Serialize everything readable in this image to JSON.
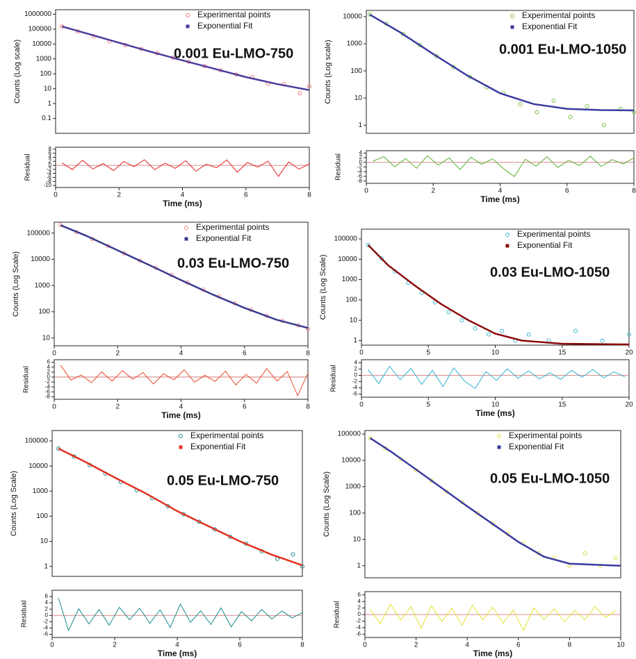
{
  "chart_data": [
    {
      "type": "scatter",
      "annotation": "0.001 Eu-LMO-750",
      "ylabel": "Counts (Log scale)",
      "log_scale": true,
      "legend": "upper right",
      "xlim": [
        0,
        8
      ],
      "ylim": [
        0.01,
        2000000
      ],
      "yticks": [
        0.1,
        1,
        10,
        100,
        1000,
        10000,
        100000,
        1000000
      ],
      "series": [
        {
          "name": "Experimental points",
          "color": "#f07878",
          "marker": "circle",
          "x": [
            0.2,
            0.7,
            1.2,
            1.7,
            2.2,
            2.7,
            3.2,
            3.7,
            4.2,
            4.7,
            5.2,
            5.7,
            6.2,
            6.7,
            7.2,
            7.7,
            8
          ],
          "values": [
            150000,
            70000,
            33000,
            15000,
            8500,
            4500,
            2400,
            1200,
            640,
            330,
            170,
            90,
            60,
            22,
            20,
            5,
            14
          ]
        },
        {
          "name": "Exponential Fit",
          "color": "#4a3c9c",
          "marker": "line",
          "x": [
            0.2,
            1,
            2,
            3,
            4,
            5,
            6,
            7,
            8
          ],
          "values": [
            150000,
            50000,
            12000,
            3000,
            800,
            220,
            60,
            20,
            8
          ]
        }
      ]
    },
    {
      "type": "line",
      "ylabel": "Residual",
      "xlabel": "Time (ms)",
      "log_scale": false,
      "xlim": [
        0,
        8
      ],
      "xticks": [
        0,
        2,
        4,
        6,
        8
      ],
      "ylim": [
        -11,
        9
      ],
      "yticks": [
        -10,
        -8,
        -6,
        -4,
        -2,
        0,
        2,
        4,
        6,
        8
      ],
      "series": [
        {
          "color": "#e02020",
          "x": [
            0.2,
            0.525,
            0.85,
            1.175,
            1.5,
            1.825,
            2.15,
            2.475,
            2.8,
            3.125,
            3.45,
            3.775,
            4.1,
            4.425,
            4.75,
            5.075,
            5.4,
            5.725,
            6.05,
            6.375,
            6.7,
            7.025,
            7.35,
            7.675,
            8
          ],
          "values": [
            1.2,
            -2.1,
            2.5,
            -1.8,
            0.9,
            -2.6,
            1.9,
            -0.7,
            2.8,
            -2.2,
            1.1,
            -1.5,
            2.3,
            -2.9,
            0.6,
            -1.2,
            2.7,
            -3.4,
            1.4,
            -0.9,
            2.1,
            -5.5,
            1.7,
            -1.9,
            0.8
          ]
        }
      ]
    },
    {
      "type": "scatter",
      "annotation": "0.001 Eu-LMO-1050",
      "ylabel": "Counts (Log scale)",
      "log_scale": true,
      "legend": "upper right",
      "xlim": [
        0,
        8
      ],
      "ylim": [
        0.5,
        17000
      ],
      "yticks": [
        1,
        10,
        100,
        1000,
        10000
      ],
      "series": [
        {
          "name": "Experimental points",
          "color": "#78c040",
          "marker": "circle",
          "x": [
            0.1,
            0.6,
            1.1,
            1.6,
            2.1,
            2.6,
            3.1,
            3.6,
            4.1,
            4.6,
            5.1,
            5.6,
            6.1,
            6.6,
            7.1,
            7.6,
            8
          ],
          "values": [
            12000,
            5500,
            2300,
            900,
            350,
            140,
            60,
            25,
            15,
            6,
            3,
            8,
            2,
            5,
            1,
            4,
            3
          ]
        },
        {
          "name": "Exponential Fit",
          "color": "#3a3aa0",
          "marker": "line",
          "x": [
            0.1,
            1,
            2,
            3,
            4,
            5,
            6,
            7,
            8
          ],
          "values": [
            12000,
            2700,
            420,
            70,
            15,
            6,
            4,
            3.6,
            3.5
          ]
        }
      ]
    },
    {
      "type": "line",
      "ylabel": "Residual",
      "xlabel": "Time (ms)",
      "log_scale": false,
      "xlim": [
        0,
        8
      ],
      "xticks": [
        0,
        2,
        4,
        6,
        8
      ],
      "ylim": [
        -9,
        5
      ],
      "yticks": [
        -8,
        -6,
        -4,
        -2,
        0,
        2,
        4
      ],
      "series": [
        {
          "color": "#58b030",
          "x": [
            0.2,
            0.525,
            0.85,
            1.175,
            1.5,
            1.825,
            2.15,
            2.475,
            2.8,
            3.125,
            3.45,
            3.775,
            4.1,
            4.425,
            4.75,
            5.075,
            5.4,
            5.725,
            6.05,
            6.375,
            6.7,
            7.025,
            7.35,
            7.675,
            8
          ],
          "values": [
            0.5,
            2.4,
            -1.9,
            1.6,
            -2.5,
            2.8,
            -1.2,
            1.9,
            -3.1,
            2.2,
            -0.8,
            1.5,
            -2.7,
            -6.1,
            1.3,
            -1.6,
            2.4,
            -2.2,
            0.9,
            -1.4,
            2.6,
            -1.8,
            1.2,
            -0.7,
            1.9
          ]
        }
      ]
    },
    {
      "type": "scatter",
      "annotation": "0.03 Eu-LMO-750",
      "ylabel": "Counts (Log Scale)",
      "log_scale": true,
      "legend": "upper right",
      "xlim": [
        0,
        8
      ],
      "xticks": [
        0,
        2,
        4,
        6,
        8
      ],
      "ylim": [
        5,
        260000
      ],
      "yticks": [
        10,
        100,
        1000,
        10000,
        100000
      ],
      "series": [
        {
          "name": "Experimental points",
          "color": "#f08a80",
          "marker": "circle",
          "x": [
            0.2,
            0.7,
            1.2,
            1.7,
            2.2,
            2.7,
            3.2,
            3.7,
            4.2,
            4.7,
            5.2,
            5.7,
            6.2,
            6.7,
            7.2,
            7.7,
            8
          ],
          "values": [
            200000,
            110000,
            60000,
            32000,
            17000,
            9000,
            4800,
            2500,
            1300,
            700,
            380,
            210,
            120,
            70,
            45,
            30,
            22
          ]
        },
        {
          "name": "Exponential Fit",
          "color": "#3a3a90",
          "marker": "line",
          "x": [
            0.2,
            1,
            2,
            3,
            4,
            5,
            6,
            7,
            8
          ],
          "values": [
            200000,
            80000,
            22000,
            6000,
            1600,
            450,
            140,
            50,
            24
          ]
        }
      ]
    },
    {
      "type": "line",
      "ylabel": "Residual",
      "xlabel": "Time (ms)",
      "log_scale": false,
      "xlim": [
        0,
        8
      ],
      "xticks": [
        0,
        2,
        4,
        6,
        8
      ],
      "ylim": [
        -9,
        7
      ],
      "yticks": [
        -8,
        -6,
        -4,
        -2,
        0,
        2,
        4,
        6
      ],
      "series": [
        {
          "color": "#e84a30",
          "x": [
            0.2,
            0.525,
            0.85,
            1.175,
            1.5,
            1.825,
            2.15,
            2.475,
            2.8,
            3.125,
            3.45,
            3.775,
            4.1,
            4.425,
            4.75,
            5.075,
            5.4,
            5.725,
            6.05,
            6.375,
            6.7,
            7.025,
            7.35,
            7.675,
            8
          ],
          "values": [
            4.8,
            -1.2,
            0.8,
            -2.3,
            2.1,
            -1.7,
            2.6,
            -0.9,
            1.8,
            -2.8,
            1.3,
            -1.1,
            2.9,
            -2.1,
            0.7,
            -1.8,
            2.4,
            -3.2,
            1.1,
            -2.5,
            3.4,
            -1.6,
            2.2,
            -7.5,
            1.5
          ]
        }
      ]
    },
    {
      "type": "scatter",
      "annotation": "0.03 Eu-LMO-1050",
      "ylabel": "Counts (Log Scale)",
      "log_scale": true,
      "legend": "upper right",
      "xlim": [
        0,
        20
      ],
      "xticks": [
        0,
        5,
        10,
        15,
        20
      ],
      "ylim": [
        0.6,
        300000
      ],
      "yticks": [
        1,
        10,
        100,
        1000,
        10000,
        100000
      ],
      "series": [
        {
          "name": "Experimental points",
          "color": "#40b8d0",
          "marker": "circle",
          "x": [
            0.5,
            1.5,
            2.5,
            3.5,
            4.5,
            5.5,
            6.5,
            7.5,
            8.5,
            9.5,
            10.5,
            11.5,
            12.5,
            14,
            16,
            18,
            20
          ],
          "values": [
            50000,
            11000,
            2500,
            700,
            220,
            75,
            25,
            10,
            4,
            2,
            3,
            1,
            2,
            1,
            3,
            1,
            2
          ]
        },
        {
          "name": "Exponential Fit",
          "color": "#8b0a0a",
          "marker": "line",
          "x": [
            0.5,
            2,
            4,
            6,
            8,
            10,
            12,
            15,
            20
          ],
          "values": [
            50000,
            5000,
            500,
            60,
            10,
            2.2,
            1,
            0.7,
            0.65
          ]
        }
      ]
    },
    {
      "type": "line",
      "ylabel": "Residual",
      "xlabel": "Time (ms)",
      "log_scale": false,
      "xlim": [
        0,
        20
      ],
      "xticks": [
        0,
        5,
        10,
        15,
        20
      ],
      "ylim": [
        -7,
        5
      ],
      "yticks": [
        -6,
        -4,
        -2,
        0,
        2,
        4
      ],
      "series": [
        {
          "color": "#30b0d0",
          "x": [
            0.5,
            1.3,
            2.1,
            2.9,
            3.7,
            4.5,
            5.3,
            6.1,
            6.9,
            7.7,
            8.5,
            9.3,
            10.1,
            10.9,
            11.7,
            12.5,
            13.3,
            14.1,
            14.9,
            15.7,
            16.5,
            17.3,
            18.1,
            18.9,
            19.7
          ],
          "values": [
            1.8,
            -2.6,
            2.9,
            -1.4,
            2.2,
            -2.9,
            1.6,
            -3.6,
            2.4,
            -1.8,
            -4.2,
            1.2,
            -1.6,
            2.1,
            -0.9,
            1.4,
            -1.1,
            0.8,
            -1.3,
            1.6,
            -0.6,
            1.9,
            -0.8,
            1.1,
            -0.5
          ]
        }
      ]
    },
    {
      "type": "scatter",
      "annotation": "0.05 Eu-LMO-750",
      "ylabel": "Counts (Log Scale)",
      "log_scale": true,
      "legend": "upper right",
      "xlim": [
        0,
        8
      ],
      "ylim": [
        0.4,
        260000
      ],
      "yticks": [
        1,
        10,
        100,
        1000,
        10000,
        100000
      ],
      "series": [
        {
          "name": "Experimental points",
          "color": "#1a8a8a",
          "marker": "circle",
          "x": [
            0.2,
            0.7,
            1.2,
            1.7,
            2.2,
            2.7,
            3.2,
            3.7,
            4.2,
            4.7,
            5.2,
            5.7,
            6.2,
            6.7,
            7.2,
            7.7,
            8
          ],
          "values": [
            50000,
            24000,
            11000,
            5000,
            2300,
            1100,
            520,
            250,
            120,
            60,
            30,
            15,
            8,
            4,
            2,
            3,
            1
          ]
        },
        {
          "name": "Exponential Fit",
          "color": "#e03020",
          "marker": "line",
          "x": [
            0.2,
            1,
            2,
            3,
            4,
            5,
            6,
            7,
            8
          ],
          "values": [
            50000,
            16000,
            3500,
            800,
            160,
            40,
            10,
            3,
            1.1
          ]
        }
      ]
    },
    {
      "type": "line",
      "ylabel": "Residual",
      "xlabel": "Time (ms)",
      "log_scale": false,
      "xlim": [
        0,
        8
      ],
      "xticks": [
        0,
        2,
        4,
        6,
        8
      ],
      "ylim": [
        -7,
        8
      ],
      "yticks": [
        -6,
        -4,
        -2,
        0,
        2,
        4,
        6
      ],
      "series": [
        {
          "color": "#1a8a8a",
          "x": [
            0.2,
            0.525,
            0.85,
            1.175,
            1.5,
            1.825,
            2.15,
            2.475,
            2.8,
            3.125,
            3.45,
            3.775,
            4.1,
            4.425,
            4.75,
            5.075,
            5.4,
            5.725,
            6.05,
            6.375,
            6.7,
            7.025,
            7.35,
            7.675,
            8
          ],
          "values": [
            5.6,
            -4.8,
            2.1,
            -2.7,
            1.9,
            -3.1,
            2.6,
            -1.4,
            2.3,
            -2.5,
            1.8,
            -3.8,
            3.6,
            -2.2,
            1.5,
            -2.9,
            2.4,
            -3.6,
            1.2,
            -1.7,
            1.9,
            -1.1,
            1.4,
            -0.8,
            0.9
          ]
        }
      ]
    },
    {
      "type": "scatter",
      "annotation": "0.05 Eu-LMO-1050",
      "ylabel": "Counts (Log Scale)",
      "log_scale": true,
      "legend": "upper right",
      "xlim": [
        0,
        10
      ],
      "ylim": [
        0.35,
        135000
      ],
      "yticks": [
        1,
        10,
        100,
        1000,
        10000,
        100000
      ],
      "series": [
        {
          "name": "Experimental points",
          "color": "#e0dc40",
          "marker": "circle",
          "x": [
            0.2,
            0.8,
            1.4,
            2,
            2.6,
            3.2,
            3.8,
            4.4,
            5,
            5.6,
            6.2,
            6.8,
            7.4,
            8,
            8.6,
            9.2,
            9.8
          ],
          "values": [
            70000,
            28000,
            11000,
            4200,
            1700,
            650,
            260,
            100,
            40,
            16,
            7,
            3,
            2,
            1,
            3,
            1,
            2
          ]
        },
        {
          "name": "Exponential Fit",
          "color": "#3a3aa0",
          "marker": "line",
          "x": [
            0.2,
            1,
            2,
            3,
            4,
            5,
            6,
            7,
            8,
            10
          ],
          "values": [
            70000,
            22000,
            4500,
            900,
            180,
            38,
            8,
            2.2,
            1.2,
            1
          ]
        }
      ]
    },
    {
      "type": "line",
      "ylabel": "Residual",
      "xlabel": "Time (ms)",
      "log_scale": false,
      "xlim": [
        0,
        10
      ],
      "xticks": [
        0,
        2,
        4,
        6,
        8,
        10
      ],
      "ylim": [
        -7,
        7
      ],
      "yticks": [
        -6,
        -4,
        -2,
        0,
        2,
        4,
        6
      ],
      "series": [
        {
          "color": "#e6e030",
          "x": [
            0.2,
            0.6,
            1,
            1.4,
            1.8,
            2.2,
            2.6,
            3,
            3.4,
            3.8,
            4.2,
            4.6,
            5,
            5.4,
            5.8,
            6.2,
            6.6,
            7,
            7.4,
            7.8,
            8.2,
            8.6,
            9,
            9.4,
            9.8
          ],
          "values": [
            1.6,
            -2.8,
            3.1,
            -1.7,
            2.4,
            -4.2,
            2.7,
            -2.1,
            1.9,
            -3.3,
            2.9,
            -1.6,
            2.2,
            -2.6,
            1.4,
            -4.9,
            2.1,
            -1.5,
            1.7,
            -2.2,
            1.3,
            -1.6,
            2.4,
            -0.9,
            1.1
          ]
        }
      ]
    }
  ]
}
